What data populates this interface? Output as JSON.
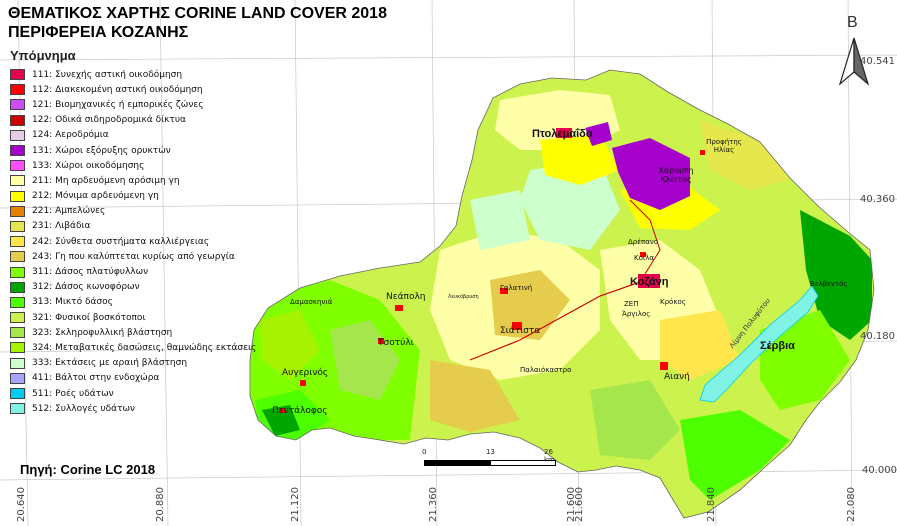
{
  "title_line1": "ΘΕΜΑΤΙΚΟΣ ΧΑΡΤΗΣ CORINE LAND COVER 2018",
  "title_line2": "ΠΕΡΙΦΕΡΕΙΑ ΚΟΖΑΝΗΣ",
  "legend": {
    "heading": "Υπόμνημα",
    "items": [
      {
        "label": "111: Συνεχής αστική οικοδόμηση",
        "color": "#e6004d"
      },
      {
        "label": "112: Διακεκομένη αστική οικοδόμηση",
        "color": "#ff0000"
      },
      {
        "label": "121: Βιομηχανικές ή εμπορικές ζώνες",
        "color": "#cc4df2"
      },
      {
        "label": "122: Οδικά σιδηροδρομικά δίκτυα",
        "color": "#cc0000"
      },
      {
        "label": "124: Αεροδρόμια",
        "color": "#e6cce6"
      },
      {
        "label": "131: Χώροι εξόρυξης ορυκτών",
        "color": "#a600cc"
      },
      {
        "label": "133: Χώροι οικοδόμησης",
        "color": "#ff4dff"
      },
      {
        "label": "211: Μη αρδευόμενη αρόσιμη γη",
        "color": "#ffffa8"
      },
      {
        "label": "212: Μόνιμα αρδευόμενη γη",
        "color": "#ffff00"
      },
      {
        "label": "221: Αμπελώνες",
        "color": "#e68000"
      },
      {
        "label": "231: Λιβάδια",
        "color": "#e6e64d"
      },
      {
        "label": "242: Σύνθετα συστήματα καλλιέργειας",
        "color": "#ffe64d"
      },
      {
        "label": "243: Γη που καλύπτεται κυρίως από γεωργία",
        "color": "#e6cc4d"
      },
      {
        "label": "311: Δάσος πλατύφυλλων",
        "color": "#80ff00"
      },
      {
        "label": "312: Δάσος κωνοφόρων",
        "color": "#00a600"
      },
      {
        "label": "313: Μικτό δάσος",
        "color": "#4dff00"
      },
      {
        "label": "321: Φυσικοί βοσκότοποι",
        "color": "#ccf24d"
      },
      {
        "label": "323: Σκληροφυλλική βλάστηση",
        "color": "#a6e64d"
      },
      {
        "label": "324: Μεταβατικές δασώσεις, θαμνώδης εκτάσεις",
        "color": "#a6f200"
      },
      {
        "label": "333: Εκτάσεις με αραιή βλάστηση",
        "color": "#ccffcc"
      },
      {
        "label": "411: Βάλτοι στην ενδοχώρα",
        "color": "#a6a6ff"
      },
      {
        "label": "511: Ροές υδάτων",
        "color": "#00ccf2"
      },
      {
        "label": "512: Συλλογές υδάτων",
        "color": "#80f2e6"
      }
    ]
  },
  "source": "Πηγή: Corine LC 2018",
  "latitude_labels": [
    "40.541",
    "40.360",
    "40.180",
    "40.000"
  ],
  "longitude_labels": [
    "20.640",
    "20.880",
    "21.120",
    "21.360",
    "21.600",
    "21.600",
    "21.840",
    "22.080"
  ],
  "north_arrow": {
    "letter": "B"
  },
  "scale_bar": {
    "ticks": [
      "0",
      "13",
      "26 km"
    ]
  },
  "places": [
    {
      "name": "Πτολεμαΐδα",
      "size": "big"
    },
    {
      "name": "Χαρουπη Κλειτος",
      "size": "small"
    },
    {
      "name": "Προφήτης Ηλίας",
      "size": "small"
    },
    {
      "name": "Δρέπανο",
      "size": "small"
    },
    {
      "name": "Κοίλα",
      "size": "small"
    },
    {
      "name": "Κοζάνη",
      "size": "big"
    },
    {
      "name": "ΖΕΠ",
      "size": "small"
    },
    {
      "name": "Κρόκος",
      "size": "small"
    },
    {
      "name": "Άργιλος",
      "size": "small"
    },
    {
      "name": "Γαλατινή",
      "size": "small"
    },
    {
      "name": "Λευκόβρυση",
      "size": "small"
    },
    {
      "name": "Νεάπολη",
      "size": "mid"
    },
    {
      "name": "Δαμασκηνιά",
      "size": "small"
    },
    {
      "name": "Σιάτιστα",
      "size": "mid"
    },
    {
      "name": "Τσοτύλι",
      "size": "mid"
    },
    {
      "name": "Παλαιόκαστρο",
      "size": "small"
    },
    {
      "name": "Αιανή",
      "size": "mid"
    },
    {
      "name": "Αυγερινός",
      "size": "mid"
    },
    {
      "name": "Πεντάλοφος",
      "size": "mid"
    },
    {
      "name": "Σέρβια",
      "size": "big"
    },
    {
      "name": "Βελβεντός",
      "size": "small"
    }
  ],
  "lake_label": "Λίμνη Πολυφύτου"
}
